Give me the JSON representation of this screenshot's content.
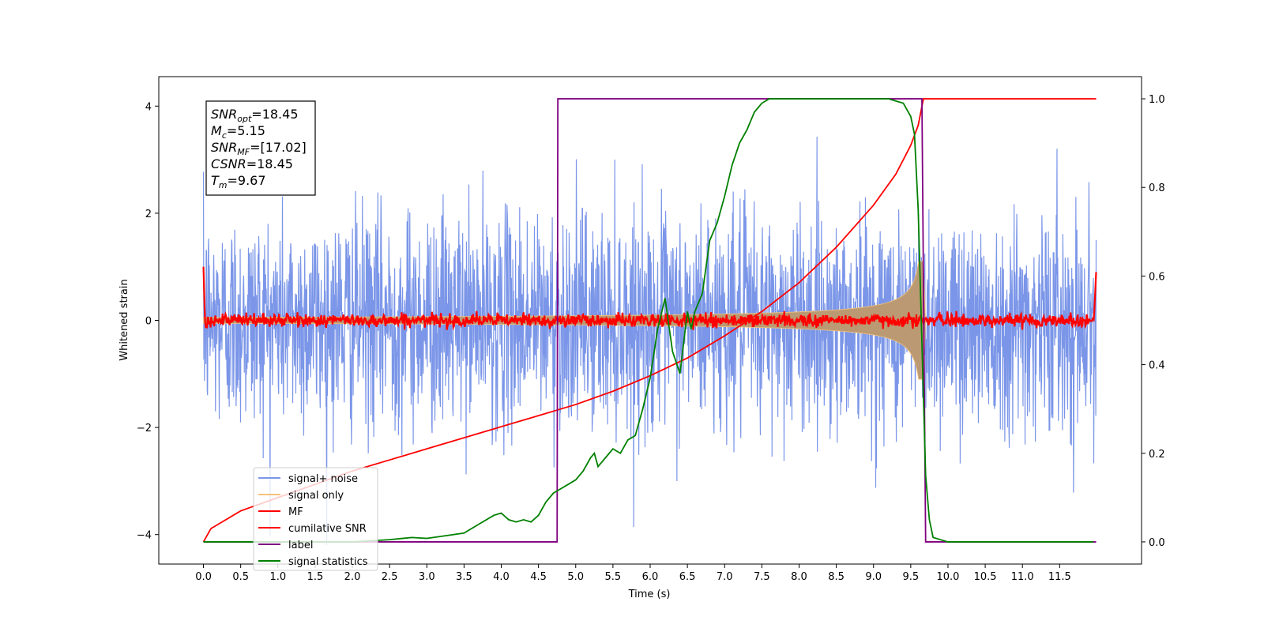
{
  "chart_data": {
    "type": "line",
    "title": "",
    "xlabel": "Time (s)",
    "ylabel": "Whitened strain",
    "ylabel_right": "",
    "xlim": [
      -0.6,
      12.6
    ],
    "ylim": [
      -4.55,
      4.55
    ],
    "ylim_right": [
      -0.05,
      1.05
    ],
    "grid": false,
    "legend_position": "lower-left",
    "x_ticks": [
      "0.0",
      "0.5",
      "1.0",
      "1.5",
      "2.0",
      "2.5",
      "3.0",
      "3.5",
      "4.0",
      "4.5",
      "5.0",
      "5.5",
      "6.0",
      "6.5",
      "7.0",
      "7.5",
      "8.0",
      "8.5",
      "9.0",
      "9.5",
      "10.0",
      "10.5",
      "11.0",
      "11.5"
    ],
    "y_ticks": [
      "4",
      "2",
      "0",
      "−2",
      "−4"
    ],
    "y_ticks_right": [
      "1.0",
      "0.8",
      "0.6",
      "0.4",
      "0.2",
      "0.0"
    ],
    "annotation": {
      "lines": [
        {
          "base": "SNR",
          "sub": "opt",
          "value": "=18.45"
        },
        {
          "base": "M",
          "sub": "c",
          "value": "=5.15"
        },
        {
          "base": "SNR",
          "sub": "MF",
          "value": "=[17.02]"
        },
        {
          "base": "CSNR",
          "sub": "",
          "value": "=18.45"
        },
        {
          "base": "T",
          "sub": "m",
          "value": "=9.67"
        }
      ]
    },
    "series": [
      {
        "name": "signal+ noise",
        "color": "#7b96e8",
        "axis": "left",
        "kind": "noise",
        "amplitude": 1.0,
        "x_range": [
          0.0,
          11.99
        ]
      },
      {
        "name": "signal only",
        "color": "#f5c27a",
        "axis": "left",
        "kind": "chirp",
        "merger_time": 9.67,
        "peak_amplitude": 1.1
      },
      {
        "name": "MF",
        "color": "#ff0000",
        "axis": "left",
        "kind": "mf",
        "amplitude": 0.06
      },
      {
        "name": "cumilative SNR",
        "color": "#ff0000",
        "axis": "right",
        "x": [
          0.0,
          0.1,
          0.5,
          1.0,
          1.5,
          2.0,
          2.5,
          3.0,
          3.5,
          4.0,
          4.5,
          5.0,
          5.5,
          6.0,
          6.5,
          7.0,
          7.5,
          8.0,
          8.5,
          9.0,
          9.3,
          9.5,
          9.6,
          9.67,
          11.99
        ],
        "y": [
          0.0,
          0.03,
          0.07,
          0.1,
          0.13,
          0.16,
          0.185,
          0.21,
          0.235,
          0.26,
          0.285,
          0.31,
          0.34,
          0.375,
          0.415,
          0.465,
          0.52,
          0.585,
          0.665,
          0.76,
          0.83,
          0.895,
          0.94,
          1.0,
          1.0
        ]
      },
      {
        "name": "label",
        "color": "#800080",
        "axis": "right",
        "x": [
          0.0,
          4.75,
          4.76,
          9.65,
          9.7,
          11.99
        ],
        "y": [
          0.0,
          0.0,
          1.0,
          1.0,
          0.0,
          0.0
        ]
      },
      {
        "name": "signal statistics",
        "color": "#008000",
        "axis": "right",
        "x": [
          0.0,
          2.0,
          2.5,
          2.8,
          3.0,
          3.3,
          3.5,
          3.7,
          3.9,
          4.0,
          4.1,
          4.2,
          4.3,
          4.4,
          4.5,
          4.6,
          4.7,
          4.8,
          4.9,
          5.0,
          5.1,
          5.2,
          5.25,
          5.3,
          5.4,
          5.5,
          5.6,
          5.7,
          5.8,
          5.9,
          6.0,
          6.1,
          6.2,
          6.3,
          6.4,
          6.5,
          6.55,
          6.6,
          6.7,
          6.8,
          6.9,
          7.0,
          7.1,
          7.2,
          7.3,
          7.4,
          7.5,
          7.6,
          8.0,
          8.4,
          8.8,
          9.2,
          9.4,
          9.5,
          9.55,
          9.6,
          9.65,
          9.7,
          9.75,
          9.8,
          10.0,
          11.0,
          11.95
        ],
        "y": [
          0.0,
          0.0,
          0.005,
          0.01,
          0.008,
          0.015,
          0.02,
          0.04,
          0.06,
          0.065,
          0.05,
          0.045,
          0.05,
          0.045,
          0.06,
          0.09,
          0.11,
          0.12,
          0.13,
          0.14,
          0.16,
          0.19,
          0.2,
          0.17,
          0.19,
          0.21,
          0.2,
          0.23,
          0.24,
          0.3,
          0.37,
          0.48,
          0.55,
          0.43,
          0.38,
          0.52,
          0.48,
          0.52,
          0.56,
          0.68,
          0.72,
          0.78,
          0.85,
          0.9,
          0.93,
          0.97,
          0.99,
          1.0,
          1.0,
          1.0,
          1.0,
          1.0,
          0.99,
          0.96,
          0.92,
          0.75,
          0.45,
          0.15,
          0.05,
          0.01,
          0.0,
          0.0,
          0.0
        ]
      }
    ]
  }
}
